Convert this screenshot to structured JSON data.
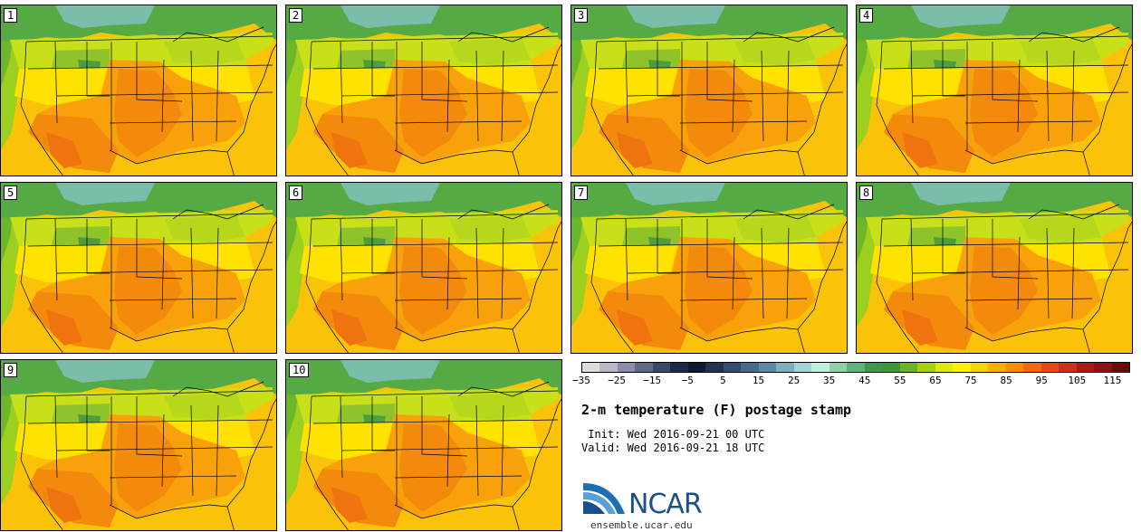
{
  "panels": [
    {
      "label": "1"
    },
    {
      "label": "2"
    },
    {
      "label": "3"
    },
    {
      "label": "4"
    },
    {
      "label": "5"
    },
    {
      "label": "6"
    },
    {
      "label": "7"
    },
    {
      "label": "8"
    },
    {
      "label": "9"
    },
    {
      "label": "10"
    }
  ],
  "colorbar": {
    "colors": [
      "#dcdcdc",
      "#b8b8c6",
      "#8c8ca6",
      "#606a86",
      "#3a4a66",
      "#1a2a48",
      "#101a30",
      "#203450",
      "#324e70",
      "#466a8c",
      "#5e8aa6",
      "#7cb0be",
      "#9ed6d6",
      "#bdeede",
      "#8ed0a8",
      "#5eb47c",
      "#3e9a4e",
      "#3a9a38",
      "#6ab428",
      "#a6d018",
      "#dcea12",
      "#fff200",
      "#ffd400",
      "#fbb000",
      "#f78c08",
      "#f26a10",
      "#e44a12",
      "#c8321a",
      "#a81c14",
      "#8a1410",
      "#6a0c0c"
    ],
    "ticks": [
      "-35",
      "-25",
      "-15",
      "-5",
      "5",
      "15",
      "25",
      "35",
      "45",
      "55",
      "65",
      "75",
      "85",
      "95",
      "105",
      "115"
    ]
  },
  "title": "2-m temperature (F) postage stamp",
  "init_text": " Init: Wed 2016-09-21 00 UTC",
  "valid_text": "Valid: Wed 2016-09-21 18 UTC",
  "logo_text": "NCAR",
  "site_text": "ensemble.ucar.edu"
}
